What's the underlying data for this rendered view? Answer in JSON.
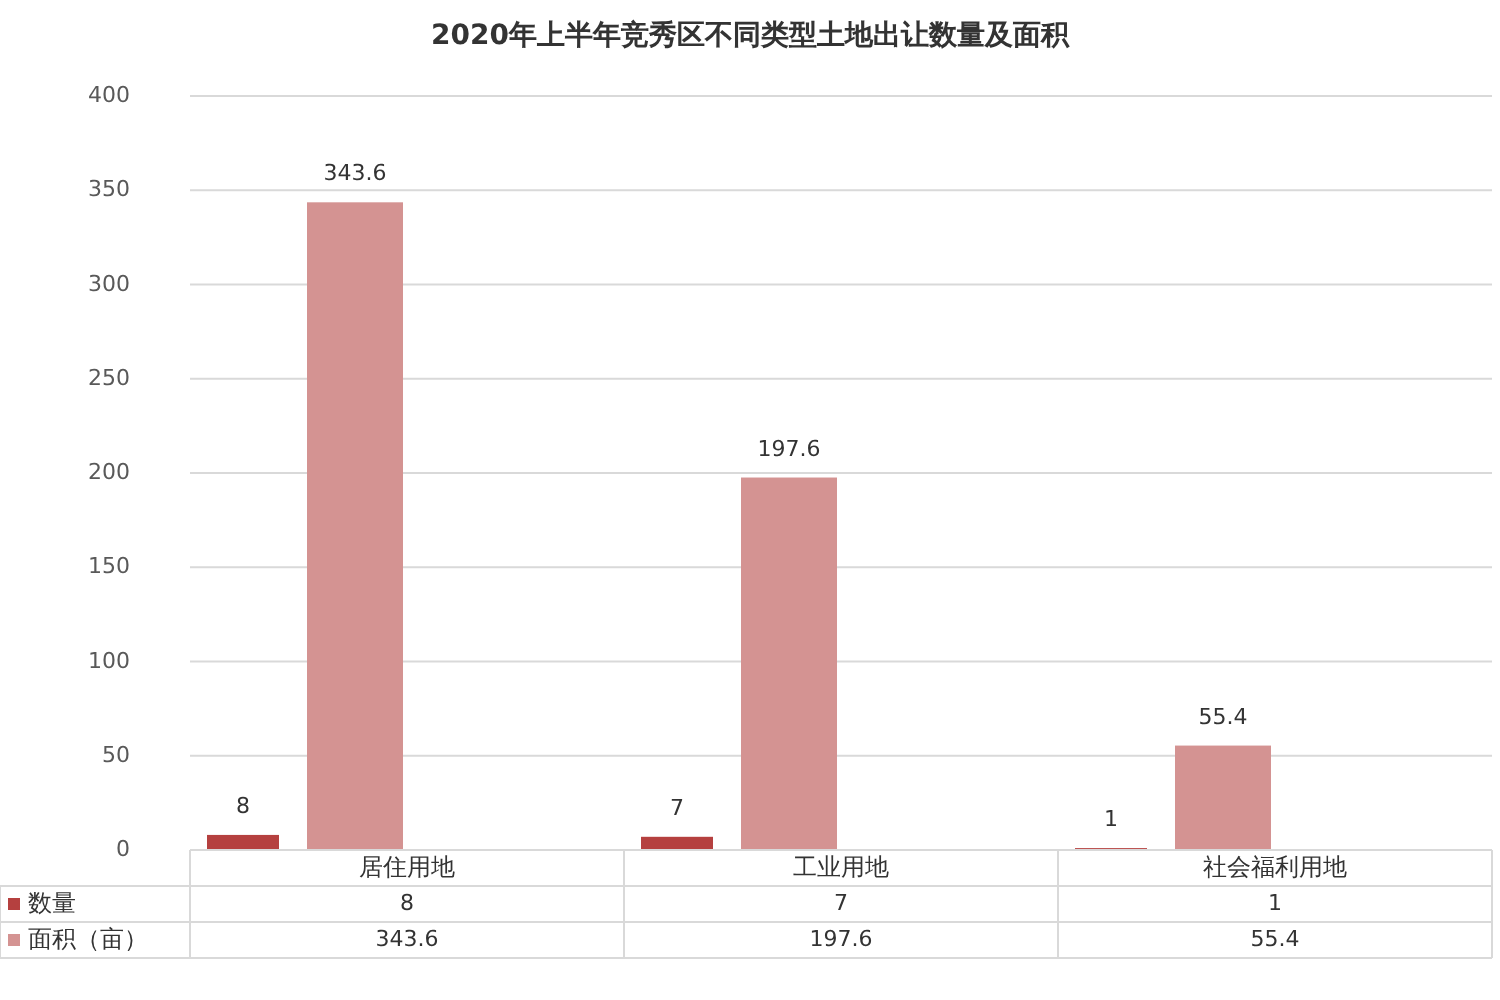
{
  "chart_data": {
    "type": "bar",
    "title": "2020年上半年竞秀区不同类型土地出让数量及面积",
    "categories": [
      "居住用地",
      "工业用地",
      "社会福利用地"
    ],
    "series": [
      {
        "name": "数量",
        "color": "#b5403f",
        "values": [
          8,
          7,
          1
        ]
      },
      {
        "name": "面积（亩）",
        "color": "#d49392",
        "values": [
          343.6,
          197.6,
          55.4
        ]
      }
    ],
    "annotations": [
      "8",
      "7",
      "1",
      {
        "text": "343.6",
        "x": "居住用地",
        "y": 343.6
      },
      {
        "text": "197.6",
        "x": "工业用地",
        "y": 197.6
      },
      {
        "text": "55.4",
        "x": "社会福利用地",
        "y": 55.4
      }
    ],
    "ylim": [
      0,
      400
    ],
    "yticks": [
      0,
      50,
      100,
      150,
      200,
      250,
      300,
      350,
      400
    ],
    "grid": "y",
    "legend": "bottom",
    "data_labels": true
  }
}
